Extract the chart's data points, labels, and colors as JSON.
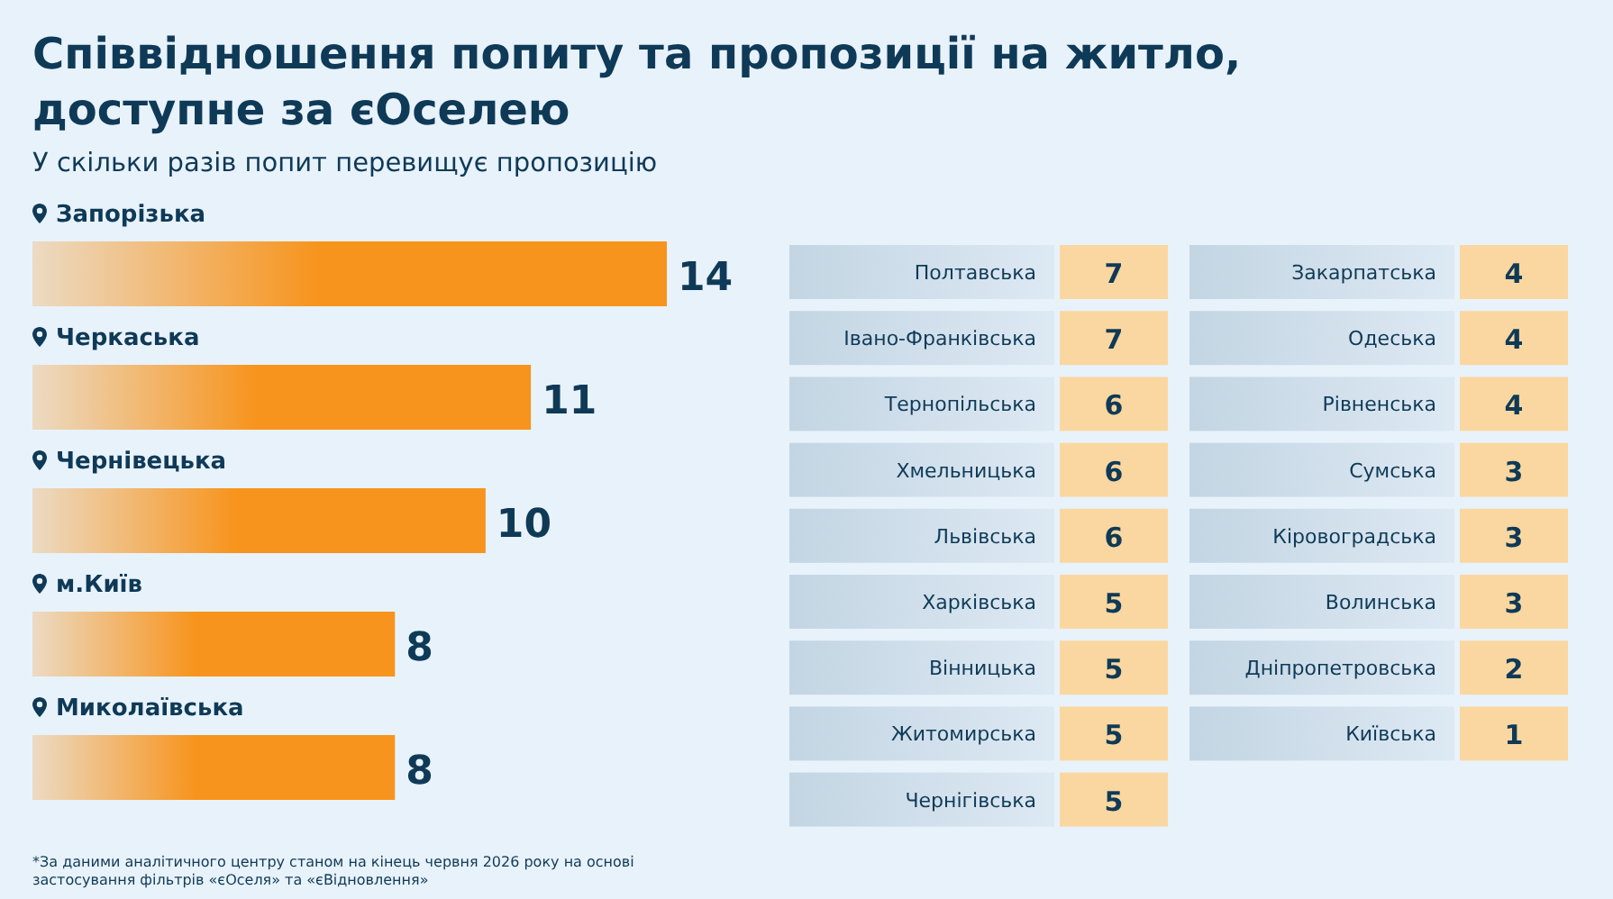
{
  "chart_data": [
    {
      "type": "bar",
      "orientation": "horizontal",
      "title": "Співвідношення попиту та пропозиції на житло, доступне за єОселею",
      "subtitle": "У скільки разів попит перевищує пропозицію",
      "categories": [
        "Запорізька",
        "Черкаська",
        "Чернівецька",
        "м.Київ",
        "Миколаївська"
      ],
      "values": [
        14,
        11,
        10,
        8,
        8
      ],
      "color": "#f7941d",
      "data_labels": true,
      "xlim": [
        0,
        14
      ],
      "tick_labels": false,
      "annotations": [
        "*За даними аналітичного центру станом на кінець червня 2026 року на основі застосування фільтрів «єОселя» та «єВідновлення»"
      ]
    },
    {
      "type": "other",
      "categories": [
        "Полтавська",
        "Івано-Франківська",
        "Тернопільська",
        "Хмельницька",
        "Львівська",
        "Харківська",
        "Вінницька",
        "Житомирська",
        "Чернігівська",
        "Закарпатська",
        "Одеська",
        "Рівненська",
        "Сумська",
        "Кіровоградська",
        "Волинська",
        "Дніпропетровська",
        "Київська"
      ],
      "values": [
        7,
        7,
        6,
        6,
        6,
        5,
        5,
        5,
        5,
        4,
        4,
        4,
        3,
        3,
        3,
        2,
        1
      ],
      "color": "#fad7a0",
      "data_labels": true
    }
  ]
}
